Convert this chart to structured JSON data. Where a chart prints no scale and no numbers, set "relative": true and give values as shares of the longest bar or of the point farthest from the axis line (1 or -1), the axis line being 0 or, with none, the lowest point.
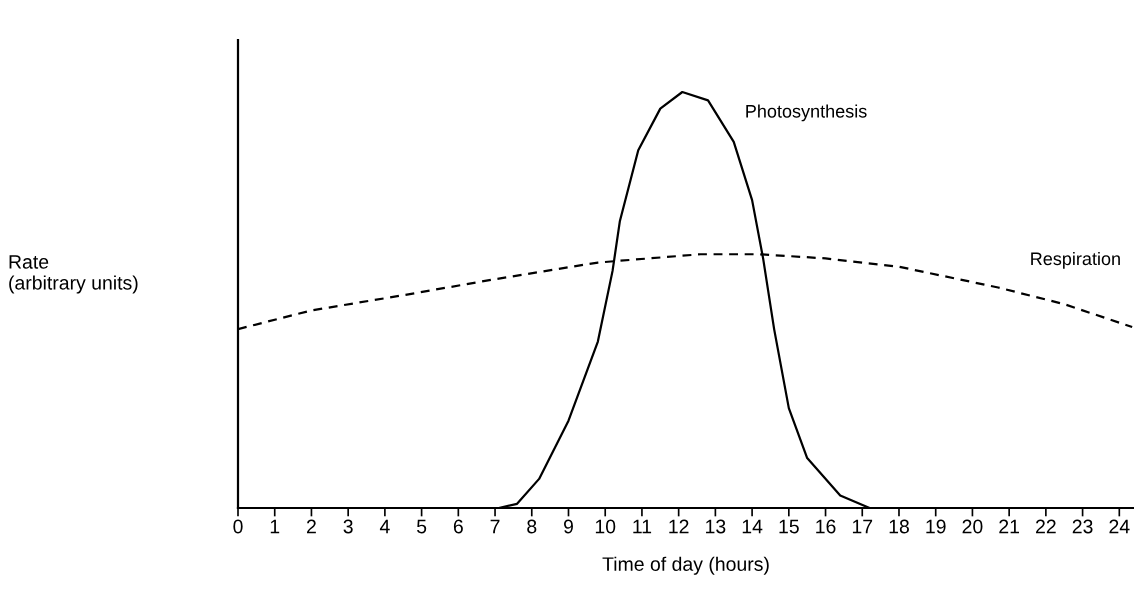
{
  "chart_data": {
    "type": "line",
    "relative": true,
    "xlabel": "Time of day (hours)",
    "ylabel": "Rate\n(arbitrary units)",
    "xlim": [
      0,
      24.4
    ],
    "xticks": [
      0,
      1,
      2,
      3,
      4,
      5,
      6,
      7,
      8,
      9,
      10,
      11,
      12,
      13,
      14,
      15,
      16,
      17,
      18,
      19,
      20,
      21,
      22,
      23,
      24
    ],
    "grid": false,
    "legend": false,
    "marker": "none",
    "series": [
      {
        "name": "Photosynthesis",
        "color": "#000000",
        "line_style": "solid",
        "x": [
          0,
          7.1,
          7.6,
          8.2,
          9.0,
          9.8,
          10.2,
          10.4,
          10.9,
          11.5,
          12.1,
          12.8,
          13.5,
          14.0,
          14.3,
          14.6,
          15.0,
          15.5,
          16.4,
          17.2,
          24.4
        ],
        "values": [
          0,
          0,
          0.01,
          0.07,
          0.21,
          0.4,
          0.57,
          0.69,
          0.86,
          0.96,
          1.0,
          0.98,
          0.88,
          0.74,
          0.6,
          0.43,
          0.24,
          0.12,
          0.03,
          0,
          0
        ]
      },
      {
        "name": "Respiration",
        "color": "#000000",
        "line_style": "dashed",
        "x": [
          0,
          2,
          4.4,
          7,
          9.8,
          12.6,
          14.2,
          16,
          18,
          20.7,
          22.5,
          24.35
        ],
        "values": [
          0.43,
          0.475,
          0.51,
          0.55,
          0.59,
          0.61,
          0.61,
          0.6,
          0.58,
          0.53,
          0.49,
          0.435
        ]
      }
    ]
  }
}
